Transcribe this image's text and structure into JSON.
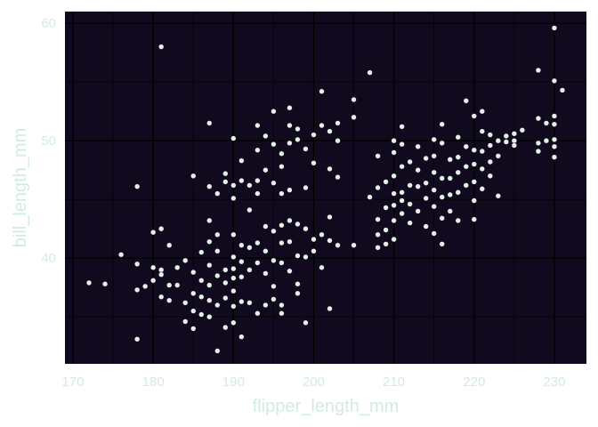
{
  "chart_data": {
    "type": "scatter",
    "title": "",
    "xlabel": "flipper_length_mm",
    "ylabel": "bill_length_mm",
    "xlim": [
      169,
      234
    ],
    "ylim": [
      31,
      61
    ],
    "x_ticks": [
      170,
      180,
      190,
      200,
      210,
      220,
      230
    ],
    "y_ticks": [
      40,
      50,
      60
    ],
    "grid": true,
    "legend": "none",
    "colors": {
      "panel_background": "#110a1e",
      "point": "#e4f1ea",
      "text": "#d3ebe0",
      "grid": "#000000"
    },
    "series": [
      {
        "points": [
          [
            172,
            37.9
          ],
          [
            174,
            37.8
          ],
          [
            176,
            40.3
          ],
          [
            178,
            46.1
          ],
          [
            178,
            39.5
          ],
          [
            178,
            37.3
          ],
          [
            178,
            33.1
          ],
          [
            179,
            37.6
          ],
          [
            180,
            42.2
          ],
          [
            180,
            38.1
          ],
          [
            180,
            39.2
          ],
          [
            181,
            58.0
          ],
          [
            181,
            42.5
          ],
          [
            181,
            39.0
          ],
          [
            181,
            38.6
          ],
          [
            181,
            36.7
          ],
          [
            182,
            41.1
          ],
          [
            182,
            37.7
          ],
          [
            182,
            36.4
          ],
          [
            183,
            37.7
          ],
          [
            183,
            39.2
          ],
          [
            184,
            36.2
          ],
          [
            184,
            39.8
          ],
          [
            184,
            34.6
          ],
          [
            185,
            47.0
          ],
          [
            185,
            38.8
          ],
          [
            185,
            37.0
          ],
          [
            185,
            35.5
          ],
          [
            185,
            34.0
          ],
          [
            186,
            36.7
          ],
          [
            186,
            38.1
          ],
          [
            186,
            40.5
          ],
          [
            186,
            35.2
          ],
          [
            187,
            51.5
          ],
          [
            187,
            46.1
          ],
          [
            187,
            43.2
          ],
          [
            187,
            41.4
          ],
          [
            187,
            39.4
          ],
          [
            187,
            37.7
          ],
          [
            187,
            36.4
          ],
          [
            187,
            35.0
          ],
          [
            188,
            45.5
          ],
          [
            188,
            42.0
          ],
          [
            188,
            40.6
          ],
          [
            188,
            38.5
          ],
          [
            188,
            36.0
          ],
          [
            188,
            32.1
          ],
          [
            189,
            47.2
          ],
          [
            189,
            46.5
          ],
          [
            189,
            39.0
          ],
          [
            189,
            37.9
          ],
          [
            189,
            36.6
          ],
          [
            189,
            34.1
          ],
          [
            190,
            50.2
          ],
          [
            190,
            46.2
          ],
          [
            190,
            45.1
          ],
          [
            190,
            42.0
          ],
          [
            190,
            40.1
          ],
          [
            190,
            39.1
          ],
          [
            190,
            38.3
          ],
          [
            190,
            37.2
          ],
          [
            190,
            35.9
          ],
          [
            190,
            34.5
          ],
          [
            191,
            48.3
          ],
          [
            191,
            46.6
          ],
          [
            191,
            41.1
          ],
          [
            191,
            39.7
          ],
          [
            191,
            38.4
          ],
          [
            191,
            36.3
          ],
          [
            191,
            33.3
          ],
          [
            192,
            46.2
          ],
          [
            192,
            44.1
          ],
          [
            192,
            40.9
          ],
          [
            192,
            39.0
          ],
          [
            192,
            36.2
          ],
          [
            193,
            51.3
          ],
          [
            193,
            49.2
          ],
          [
            193,
            46.6
          ],
          [
            193,
            45.5
          ],
          [
            193,
            41.3
          ],
          [
            193,
            39.6
          ],
          [
            193,
            35.3
          ],
          [
            194,
            50.4
          ],
          [
            194,
            47.5
          ],
          [
            194,
            42.7
          ],
          [
            194,
            40.6
          ],
          [
            194,
            38.7
          ],
          [
            194,
            36.0
          ],
          [
            195,
            52.5
          ],
          [
            195,
            49.7
          ],
          [
            195,
            46.4
          ],
          [
            195,
            42.3
          ],
          [
            195,
            39.8
          ],
          [
            195,
            37.6
          ],
          [
            195,
            36.5
          ],
          [
            196,
            48.9
          ],
          [
            196,
            47.8
          ],
          [
            196,
            45.5
          ],
          [
            196,
            42.8
          ],
          [
            196,
            41.3
          ],
          [
            196,
            39.6
          ],
          [
            196,
            36.0
          ],
          [
            196,
            35.3
          ],
          [
            197,
            52.8
          ],
          [
            197,
            51.3
          ],
          [
            197,
            49.8
          ],
          [
            197,
            45.8
          ],
          [
            197,
            43.2
          ],
          [
            197,
            41.4
          ],
          [
            197,
            38.9
          ],
          [
            198,
            51.0
          ],
          [
            198,
            50.1
          ],
          [
            198,
            42.9
          ],
          [
            198,
            40.2
          ],
          [
            198,
            37.8
          ],
          [
            198,
            37.0
          ],
          [
            199,
            49.3
          ],
          [
            199,
            46.0
          ],
          [
            199,
            42.5
          ],
          [
            199,
            40.1
          ],
          [
            199,
            34.5
          ],
          [
            200,
            50.5
          ],
          [
            200,
            48.1
          ],
          [
            200,
            41.6
          ],
          [
            200,
            40.6
          ],
          [
            201,
            54.2
          ],
          [
            201,
            51.3
          ],
          [
            201,
            42.0
          ],
          [
            201,
            39.2
          ],
          [
            202,
            50.8
          ],
          [
            202,
            47.6
          ],
          [
            202,
            43.5
          ],
          [
            202,
            41.5
          ],
          [
            202,
            35.7
          ],
          [
            203,
            51.5
          ],
          [
            203,
            50.0
          ],
          [
            203,
            46.9
          ],
          [
            203,
            41.1
          ],
          [
            205,
            53.5
          ],
          [
            205,
            52.0
          ],
          [
            205,
            41.1
          ],
          [
            207,
            55.8
          ],
          [
            207,
            45.2
          ],
          [
            208,
            48.7
          ],
          [
            208,
            46.0
          ],
          [
            208,
            43.3
          ],
          [
            208,
            42.0
          ],
          [
            208,
            40.9
          ],
          [
            209,
            46.5
          ],
          [
            209,
            44.3
          ],
          [
            209,
            42.4
          ],
          [
            209,
            41.2
          ],
          [
            210,
            50.0
          ],
          [
            210,
            49.0
          ],
          [
            210,
            47.0
          ],
          [
            210,
            45.5
          ],
          [
            210,
            44.5
          ],
          [
            210,
            43.2
          ],
          [
            210,
            41.6
          ],
          [
            211,
            51.2
          ],
          [
            211,
            49.7
          ],
          [
            211,
            47.8
          ],
          [
            211,
            45.6
          ],
          [
            211,
            44.9
          ],
          [
            211,
            43.8
          ],
          [
            212,
            48.2
          ],
          [
            212,
            46.2
          ],
          [
            212,
            44.6
          ],
          [
            212,
            43.0
          ],
          [
            213,
            49.5
          ],
          [
            213,
            47.5
          ],
          [
            213,
            46.1
          ],
          [
            213,
            44.0
          ],
          [
            214,
            48.5
          ],
          [
            214,
            46.4
          ],
          [
            214,
            45.1
          ],
          [
            214,
            42.7
          ],
          [
            215,
            50.1
          ],
          [
            215,
            48.7
          ],
          [
            215,
            47.3
          ],
          [
            215,
            45.8
          ],
          [
            215,
            44.4
          ],
          [
            215,
            42.1
          ],
          [
            216,
            51.4
          ],
          [
            216,
            49.8
          ],
          [
            216,
            46.8
          ],
          [
            216,
            45.2
          ],
          [
            216,
            43.4
          ],
          [
            216,
            41.2
          ],
          [
            217,
            48.4
          ],
          [
            217,
            46.8
          ],
          [
            217,
            45.4
          ],
          [
            217,
            44.0
          ],
          [
            218,
            50.3
          ],
          [
            218,
            48.6
          ],
          [
            218,
            47.3
          ],
          [
            218,
            45.6
          ],
          [
            218,
            43.2
          ],
          [
            219,
            53.4
          ],
          [
            219,
            49.5
          ],
          [
            219,
            47.8
          ],
          [
            219,
            46.2
          ],
          [
            220,
            52.1
          ],
          [
            220,
            49.2
          ],
          [
            220,
            48.0
          ],
          [
            220,
            46.5
          ],
          [
            220,
            44.9
          ],
          [
            220,
            43.3
          ],
          [
            221,
            52.5
          ],
          [
            221,
            50.8
          ],
          [
            221,
            49.1
          ],
          [
            221,
            47.6
          ],
          [
            221,
            45.9
          ],
          [
            222,
            50.5
          ],
          [
            222,
            49.6
          ],
          [
            222,
            48.2
          ],
          [
            222,
            47.0
          ],
          [
            223,
            50.0
          ],
          [
            223,
            48.7
          ],
          [
            223,
            45.3
          ],
          [
            224,
            50.4
          ],
          [
            224,
            49.9
          ],
          [
            225,
            50.6
          ],
          [
            225,
            50.0
          ],
          [
            225,
            49.6
          ],
          [
            226,
            50.9
          ],
          [
            228,
            56.0
          ],
          [
            228,
            51.9
          ],
          [
            228,
            49.8
          ],
          [
            228,
            49.1
          ],
          [
            229,
            51.5
          ],
          [
            229,
            50.0
          ],
          [
            230,
            59.6
          ],
          [
            230,
            55.1
          ],
          [
            230,
            52.1
          ],
          [
            230,
            51.4
          ],
          [
            230,
            50.1
          ],
          [
            230,
            49.5
          ],
          [
            230,
            48.6
          ],
          [
            231,
            54.3
          ]
        ]
      }
    ]
  }
}
